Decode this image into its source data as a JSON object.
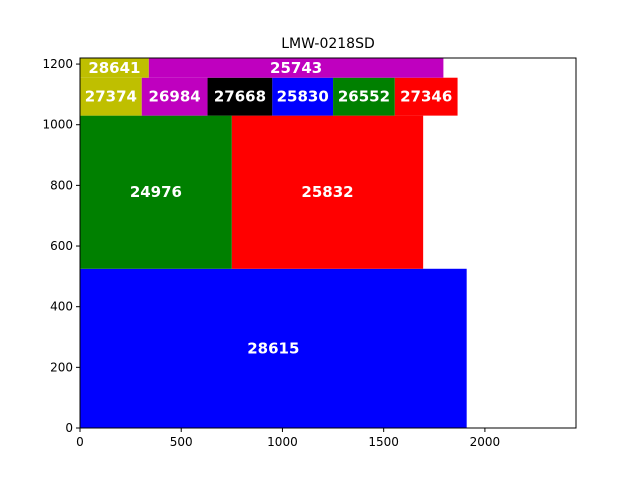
{
  "chart_data": {
    "type": "treemap",
    "title": "LMW-0218SD",
    "xlabel": "",
    "ylabel": "",
    "xlim": [
      0,
      2450
    ],
    "ylim": [
      0,
      1220
    ],
    "xticks": [
      0,
      500,
      1000,
      1500,
      2000
    ],
    "yticks": [
      0,
      200,
      400,
      600,
      800,
      1000,
      1200
    ],
    "grid": false,
    "legend": "none",
    "rects": [
      {
        "label": "28615",
        "x0": 0,
        "x1": 1910,
        "y0": 0,
        "y1": 525,
        "color": "#0000ff"
      },
      {
        "label": "24976",
        "x0": 0,
        "x1": 750,
        "y0": 525,
        "y1": 1030,
        "color": "#008000"
      },
      {
        "label": "25832",
        "x0": 750,
        "x1": 1695,
        "y0": 525,
        "y1": 1030,
        "color": "#ff0000"
      },
      {
        "label": "27374",
        "x0": 0,
        "x1": 305,
        "y0": 1030,
        "y1": 1155,
        "color": "#bfbf00"
      },
      {
        "label": "26984",
        "x0": 305,
        "x1": 630,
        "y0": 1030,
        "y1": 1155,
        "color": "#bf00bf"
      },
      {
        "label": "27668",
        "x0": 630,
        "x1": 950,
        "y0": 1030,
        "y1": 1155,
        "color": "#000000"
      },
      {
        "label": "25830",
        "x0": 950,
        "x1": 1250,
        "y0": 1030,
        "y1": 1155,
        "color": "#0000ff"
      },
      {
        "label": "26552",
        "x0": 1250,
        "x1": 1555,
        "y0": 1030,
        "y1": 1155,
        "color": "#008000"
      },
      {
        "label": "27346",
        "x0": 1555,
        "x1": 1865,
        "y0": 1030,
        "y1": 1155,
        "color": "#ff0000"
      },
      {
        "label": "28641",
        "x0": 0,
        "x1": 340,
        "y0": 1155,
        "y1": 1220,
        "color": "#bfbf00"
      },
      {
        "label": "25743",
        "x0": 340,
        "x1": 1795,
        "y0": 1155,
        "y1": 1220,
        "color": "#bf00bf"
      }
    ]
  }
}
